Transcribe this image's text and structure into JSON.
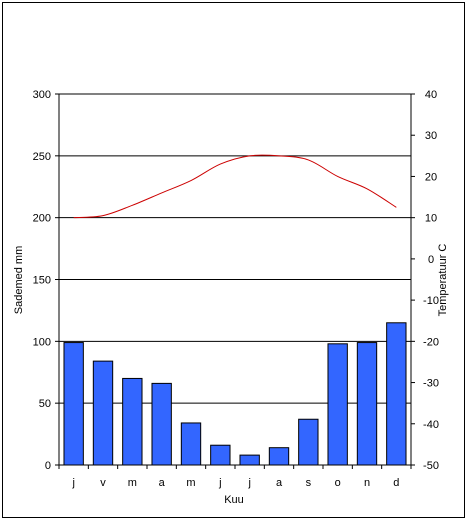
{
  "chart_data": {
    "type": "bar+line",
    "categories": [
      "j",
      "v",
      "m",
      "a",
      "m",
      "j",
      "j",
      "a",
      "s",
      "o",
      "n",
      "d"
    ],
    "series": [
      {
        "type": "bar",
        "axis": "left",
        "color": "#3366ff",
        "values": [
          99,
          84,
          70,
          66,
          34,
          16,
          8,
          14,
          37,
          98,
          99,
          115
        ]
      },
      {
        "type": "line",
        "axis": "right",
        "color": "#cc0000",
        "values": [
          10,
          10.5,
          13,
          16,
          19,
          23,
          25,
          25,
          24,
          20,
          17,
          12.5
        ]
      }
    ],
    "xlabel": "Kuu",
    "ylabel": "Sademed mm",
    "y2label": "Temperatuur C",
    "ylim": [
      0,
      300
    ],
    "y2lim": [
      -50,
      40
    ],
    "yticks": [
      0,
      50,
      100,
      150,
      200,
      250,
      300
    ],
    "y2ticks": [
      -50,
      -40,
      -30,
      -20,
      -10,
      0,
      10,
      20,
      30,
      40
    ],
    "gridlines": "horizontal",
    "legend": "none"
  }
}
